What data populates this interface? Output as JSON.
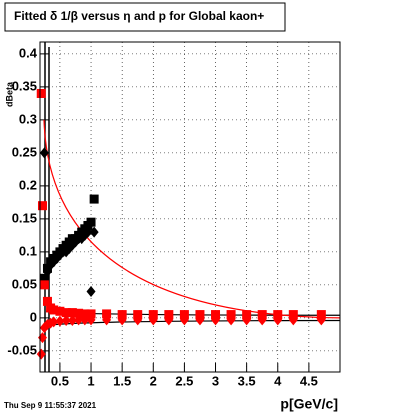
{
  "chart_data": {
    "type": "scatter",
    "title": "Fitted δ 1/β versus η and p for Global kaon+",
    "x_label": "p[GeV/c]",
    "y_label": "dBeta",
    "footer": "Thu Sep  9 11:55:37 2021",
    "xlim": [
      0.18,
      5.0
    ],
    "ylim": [
      -0.082,
      0.418
    ],
    "xticks": [
      0.5,
      1,
      1.5,
      2,
      2.5,
      3,
      3.5,
      4,
      4.5
    ],
    "yticks": [
      -0.05,
      0,
      0.05,
      0.1,
      0.15,
      0.2,
      0.25,
      0.3,
      0.35,
      0.4
    ],
    "grid": true,
    "series": [
      {
        "color": "#000000",
        "marker": "square",
        "x": [
          0.25,
          0.3,
          0.35,
          0.4,
          0.45,
          0.5,
          0.55,
          0.6,
          0.65,
          0.7,
          0.75,
          0.8,
          0.85,
          0.9,
          0.95,
          1.0,
          1.05
        ],
        "values": [
          0.06,
          0.075,
          0.085,
          0.09,
          0.095,
          0.1,
          0.105,
          0.11,
          0.115,
          0.12,
          0.12,
          0.125,
          0.13,
          0.135,
          0.14,
          0.145,
          0.18
        ]
      },
      {
        "color": "#000000",
        "marker": "diamond",
        "x": [
          0.25,
          0.3,
          0.35,
          0.4,
          0.45,
          0.5,
          0.55,
          0.6,
          0.65,
          0.7,
          0.75,
          0.8,
          0.85,
          0.9,
          0.95,
          1.0,
          1.05
        ],
        "values": [
          0.25,
          0.07,
          0.08,
          0.085,
          0.09,
          0.095,
          0.1,
          0.1,
          0.105,
          0.11,
          0.115,
          0.12,
          0.12,
          0.125,
          0.13,
          0.04,
          0.13
        ]
      },
      {
        "color": "#ff0000",
        "marker": "square",
        "x": [
          0.2,
          0.22,
          0.25,
          0.3,
          0.35,
          0.4,
          0.5,
          0.6,
          0.7,
          0.8,
          0.9,
          1.0,
          1.25,
          1.5,
          1.75,
          2.0,
          2.25,
          2.5,
          2.75,
          3.0,
          3.25,
          3.5,
          3.75,
          4.0,
          4.25,
          4.7
        ],
        "values": [
          0.34,
          0.17,
          0.05,
          0.025,
          0.015,
          0.012,
          0.01,
          0.008,
          0.008,
          0.007,
          0.006,
          0.006,
          0.006,
          0.005,
          0.005,
          0.005,
          0.005,
          0.005,
          0.005,
          0.005,
          0.005,
          0.005,
          0.005,
          0.005,
          0.005,
          0.005
        ]
      },
      {
        "color": "#ff0000",
        "marker": "diamond",
        "x": [
          0.2,
          0.22,
          0.25,
          0.3,
          0.35,
          0.4,
          0.5,
          0.6,
          0.7,
          0.8,
          0.9,
          1.0,
          1.25,
          1.5,
          1.75,
          2.0,
          2.25,
          2.5,
          2.75,
          3.0,
          3.25,
          3.5,
          3.75,
          4.0,
          4.25,
          4.7
        ],
        "values": [
          -0.055,
          -0.03,
          -0.015,
          -0.01,
          -0.008,
          -0.006,
          -0.005,
          -0.004,
          -0.004,
          -0.003,
          -0.003,
          -0.003,
          -0.003,
          -0.003,
          -0.003,
          -0.003,
          -0.003,
          -0.003,
          -0.003,
          -0.003,
          -0.003,
          -0.003,
          -0.003,
          -0.003,
          -0.003,
          -0.003
        ]
      }
    ]
  }
}
